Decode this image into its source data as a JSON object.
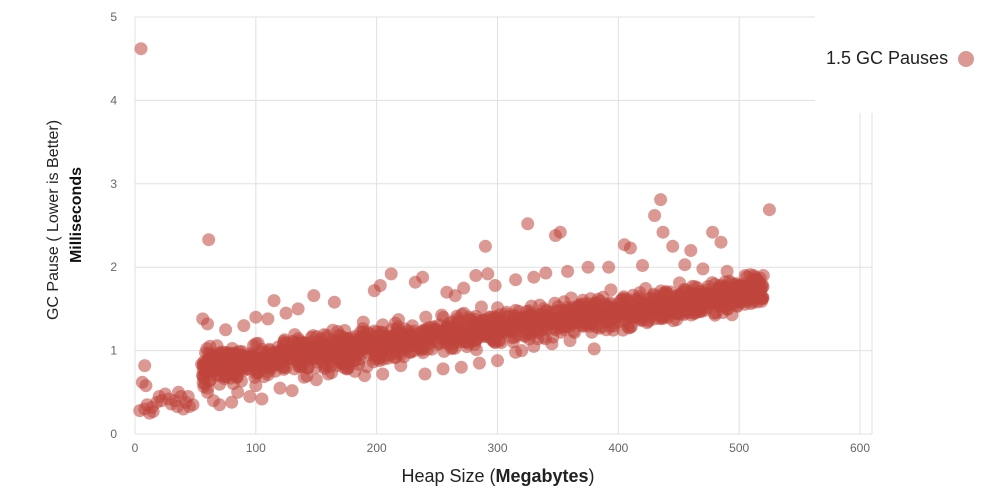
{
  "chart_data": {
    "type": "scatter",
    "x_label": {
      "prefix": "Heap Size (",
      "bold": "Megabytes",
      "suffix": ")"
    },
    "y_label": {
      "main": "GC Pause ( Lower is Better)",
      "bold": "Milliseconds"
    },
    "xlim": [
      0,
      600
    ],
    "ylim": [
      0,
      5
    ],
    "x_ticks": [
      0,
      100,
      200,
      300,
      400,
      500,
      600
    ],
    "y_ticks": [
      0,
      1,
      2,
      3,
      4,
      5
    ],
    "grid": true,
    "legend_position": "top-right",
    "series": [
      {
        "name": "1.5 GC Pauses",
        "color": "#c0463d",
        "points": [
          [
            5,
            4.62
          ],
          [
            61,
            2.33
          ],
          [
            525,
            2.69
          ],
          [
            435,
            2.81
          ],
          [
            430,
            2.62
          ],
          [
            437,
            2.42
          ],
          [
            478,
            2.42
          ],
          [
            485,
            2.3
          ],
          [
            325,
            2.52
          ],
          [
            348,
            2.38
          ],
          [
            352,
            2.42
          ],
          [
            290,
            2.25
          ],
          [
            405,
            2.27
          ],
          [
            410,
            2.23
          ],
          [
            445,
            2.25
          ],
          [
            460,
            2.2
          ],
          [
            8,
            0.82
          ],
          [
            6,
            0.62
          ],
          [
            9,
            0.58
          ],
          [
            4,
            0.28
          ],
          [
            8,
            0.3
          ],
          [
            12,
            0.25
          ],
          [
            15,
            0.27
          ],
          [
            10,
            0.35
          ],
          [
            18,
            0.38
          ],
          [
            20,
            0.45
          ],
          [
            22,
            0.4
          ],
          [
            25,
            0.48
          ],
          [
            28,
            0.42
          ],
          [
            30,
            0.36
          ],
          [
            33,
            0.4
          ],
          [
            35,
            0.33
          ],
          [
            38,
            0.45
          ],
          [
            40,
            0.3
          ],
          [
            42,
            0.38
          ],
          [
            45,
            0.33
          ],
          [
            48,
            0.35
          ],
          [
            44,
            0.45
          ],
          [
            36,
            0.5
          ],
          [
            14,
            0.32
          ],
          [
            56,
            1.38
          ],
          [
            60,
            1.32
          ],
          [
            62,
            1.05
          ],
          [
            64,
            0.75
          ],
          [
            58,
            0.6
          ],
          [
            60,
            0.5
          ],
          [
            65,
            0.4
          ],
          [
            70,
            0.35
          ],
          [
            80,
            0.38
          ],
          [
            85,
            0.5
          ],
          [
            95,
            0.45
          ],
          [
            105,
            0.42
          ],
          [
            115,
            1.6
          ],
          [
            100,
            0.58
          ],
          [
            120,
            0.55
          ],
          [
            130,
            0.52
          ],
          [
            148,
            1.66
          ],
          [
            165,
            1.58
          ],
          [
            198,
            1.72
          ],
          [
            203,
            1.78
          ],
          [
            212,
            1.92
          ],
          [
            232,
            1.82
          ],
          [
            238,
            1.88
          ],
          [
            258,
            1.7
          ],
          [
            265,
            1.66
          ],
          [
            272,
            1.75
          ],
          [
            282,
            1.9
          ],
          [
            292,
            1.92
          ],
          [
            298,
            1.78
          ],
          [
            315,
            1.85
          ],
          [
            330,
            1.88
          ],
          [
            340,
            1.93
          ],
          [
            358,
            1.95
          ],
          [
            375,
            2.0
          ],
          [
            392,
            2.0
          ],
          [
            420,
            2.02
          ],
          [
            455,
            2.03
          ],
          [
            470,
            1.98
          ],
          [
            490,
            1.95
          ],
          [
            505,
            1.9
          ],
          [
            512,
            1.9
          ],
          [
            520,
            1.9
          ],
          [
            500,
            1.78
          ],
          [
            495,
            1.7
          ],
          [
            480,
            1.6
          ],
          [
            475,
            1.55
          ],
          [
            465,
            1.53
          ],
          [
            455,
            1.5
          ],
          [
            220,
            0.82
          ],
          [
            240,
            0.72
          ],
          [
            255,
            0.78
          ],
          [
            270,
            0.8
          ],
          [
            285,
            0.85
          ],
          [
            300,
            0.88
          ],
          [
            315,
            0.98
          ],
          [
            320,
            1.0
          ],
          [
            330,
            1.05
          ],
          [
            345,
            1.08
          ],
          [
            360,
            1.12
          ],
          [
            378,
            1.22
          ],
          [
            390,
            1.25
          ],
          [
            410,
            1.28
          ],
          [
            425,
            1.35
          ],
          [
            440,
            1.42
          ],
          [
            380,
            1.02
          ],
          [
            190,
            0.7
          ],
          [
            175,
            0.78
          ],
          [
            160,
            0.72
          ],
          [
            150,
            0.65
          ],
          [
            140,
            0.68
          ],
          [
            182,
            0.75
          ],
          [
            205,
            0.72
          ],
          [
            100,
            1.4
          ],
          [
            125,
            1.45
          ],
          [
            135,
            1.5
          ],
          [
            110,
            1.38
          ],
          [
            90,
            1.3
          ],
          [
            75,
            1.25
          ]
        ]
      }
    ],
    "bands": [
      {
        "x_start": 55,
        "x_end": 520,
        "center_start": 0.78,
        "center_end": 1.72,
        "spread_start": 0.22,
        "spread_end": 0.2,
        "count": 1600
      }
    ]
  }
}
